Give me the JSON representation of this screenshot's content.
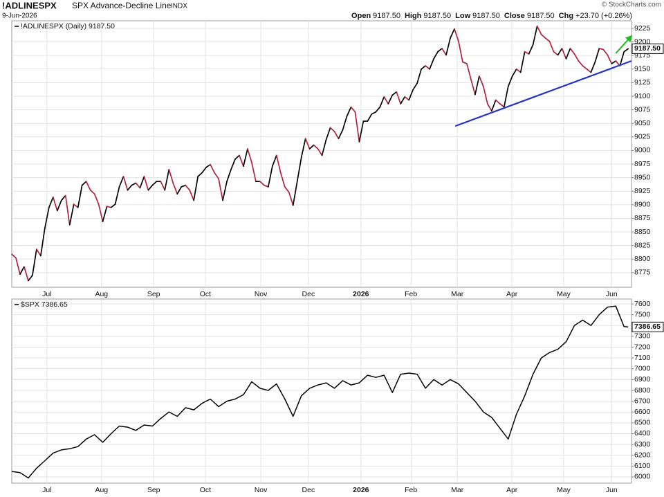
{
  "header": {
    "symbol": "!ADLINESPX",
    "name": "SPX Advance-Decline Line",
    "exchange": "INDX",
    "date": "9-Jun-2026",
    "credit": "© StockCharts.com",
    "quote": [
      {
        "label": "Open",
        "value": "9187.50"
      },
      {
        "label": "High",
        "value": "9187.50"
      },
      {
        "label": "Low",
        "value": "9187.50"
      },
      {
        "label": "Close",
        "value": "9187.50"
      },
      {
        "label": "Chg",
        "value": "+23.70 (+0.26%)"
      }
    ]
  },
  "chart_data": [
    {
      "type": "line",
      "legend": "!ADLINESPX (Daily) 9187.50",
      "last_label": "9187.50",
      "up_color": "#000000",
      "down_color": "#b5213d",
      "grid": true,
      "x": [
        0,
        1,
        2,
        3,
        4,
        5,
        6,
        7,
        8,
        9,
        10,
        11,
        12,
        13,
        14,
        15,
        16,
        17,
        18,
        19,
        20,
        21,
        22,
        23,
        24,
        25,
        26,
        27,
        28,
        29,
        30,
        31,
        32,
        33,
        34,
        35,
        36,
        37,
        38,
        39,
        40,
        41,
        42,
        43,
        44,
        45,
        46,
        47,
        48,
        49,
        50,
        51,
        52,
        53,
        54,
        55,
        56,
        57,
        58,
        59,
        60,
        61,
        62,
        63,
        64,
        65,
        66,
        67,
        68,
        69,
        70,
        71,
        72,
        73,
        74,
        75,
        76,
        77,
        78,
        79,
        80,
        81,
        82,
        83,
        84,
        85,
        86,
        87,
        88,
        89,
        90,
        91,
        92,
        93,
        94,
        95,
        96,
        97,
        98,
        99,
        100,
        101,
        102,
        103,
        104,
        105,
        106,
        107,
        108,
        109,
        110,
        111,
        112,
        113,
        114,
        115,
        116,
        117,
        118,
        119,
        120,
        121,
        122,
        123,
        124,
        125,
        126,
        127,
        128,
        129,
        130,
        131,
        132,
        133,
        134,
        135,
        136,
        137,
        138,
        139,
        140,
        141,
        142,
        143,
        144,
        145,
        146,
        147,
        148,
        149
      ],
      "values": [
        8809,
        8802,
        8772,
        8786,
        8760,
        8770,
        8818,
        8806,
        8857,
        8895,
        8914,
        8889,
        8908,
        8917,
        8863,
        8901,
        8895,
        8936,
        8943,
        8927,
        8920,
        8901,
        8869,
        8897,
        8895,
        8901,
        8933,
        8952,
        8927,
        8936,
        8940,
        8931,
        8952,
        8927,
        8936,
        8943,
        8943,
        8927,
        8965,
        8940,
        8920,
        8933,
        8936,
        8927,
        8908,
        8952,
        8959,
        8969,
        8974,
        8959,
        8948,
        8908,
        8943,
        8965,
        8984,
        8991,
        8971,
        9003,
        8978,
        8943,
        8943,
        8936,
        8933,
        8971,
        8991,
        8959,
        8933,
        8923,
        8899,
        8943,
        8987,
        9022,
        9003,
        9010,
        9003,
        8991,
        9020,
        9042,
        9035,
        9022,
        9038,
        9063,
        9080,
        9071,
        9016,
        9054,
        9054,
        9067,
        9071,
        9080,
        9099,
        9086,
        9102,
        9108,
        9086,
        9099,
        9093,
        9112,
        9124,
        9150,
        9156,
        9150,
        9169,
        9182,
        9188,
        9176,
        9207,
        9224,
        9201,
        9163,
        9160,
        9131,
        9103,
        9137,
        9118,
        9086,
        9073,
        9093,
        9086,
        9080,
        9118,
        9137,
        9150,
        9144,
        9182,
        9178,
        9195,
        9229,
        9214,
        9207,
        9201,
        9182,
        9176,
        9188,
        9169,
        9188,
        9178,
        9165,
        9156,
        9150,
        9144,
        9163,
        9188,
        9186,
        9176,
        9160,
        9165,
        9156,
        9182,
        9187.5
      ],
      "xlim": [
        0,
        149.8
      ],
      "xticks": [
        {
          "value": 8.5,
          "label": "Jul"
        },
        {
          "value": 21.7,
          "label": "Aug"
        },
        {
          "value": 34.3,
          "label": "Sep"
        },
        {
          "value": 46.8,
          "label": "Oct"
        },
        {
          "value": 60.2,
          "label": "Nov"
        },
        {
          "value": 71.7,
          "label": "Dec"
        },
        {
          "value": 84.4,
          "label": "2026"
        },
        {
          "value": 96.5,
          "label": "Feb"
        },
        {
          "value": 107.7,
          "label": "Mar"
        },
        {
          "value": 120.9,
          "label": "Apr"
        },
        {
          "value": 133.4,
          "label": "May"
        },
        {
          "value": 145.0,
          "label": "Jun"
        }
      ],
      "ylim": [
        8748,
        9239
      ],
      "yticks": [
        8775,
        8800,
        8825,
        8850,
        8875,
        8900,
        8925,
        8950,
        8975,
        9000,
        9025,
        9050,
        9075,
        9100,
        9125,
        9150,
        9175,
        9200,
        9225
      ],
      "trendline": {
        "x": [
          107.2,
          149.8
        ],
        "y": [
          9045,
          9165
        ],
        "color": "#2233cc"
      },
      "arrow": {
        "x": [
          146,
          149.8
        ],
        "y": [
          9179,
          9211
        ],
        "color": "#22bb22"
      }
    },
    {
      "type": "line",
      "legend": "$SPX 7386.65",
      "last_label": "7386.65",
      "color": "#000000",
      "grid": true,
      "x": [
        0,
        2,
        4,
        6,
        8,
        10,
        12,
        14,
        16,
        18,
        20,
        22,
        24,
        26,
        28,
        30,
        32,
        34,
        36,
        38,
        40,
        42,
        44,
        46,
        48,
        50,
        52,
        54,
        56,
        58,
        60,
        62,
        64,
        66,
        68,
        70,
        72,
        74,
        76,
        78,
        80,
        82,
        84,
        86,
        88,
        90,
        92,
        94,
        96,
        98,
        100,
        102,
        104,
        106,
        108,
        110,
        112,
        114,
        116,
        118,
        120,
        122,
        124,
        126,
        128,
        130,
        132,
        134,
        136,
        138,
        140,
        142,
        144,
        146,
        148,
        149
      ],
      "values": [
        6050,
        6040,
        5990,
        6080,
        6150,
        6220,
        6250,
        6260,
        6280,
        6350,
        6390,
        6320,
        6400,
        6470,
        6460,
        6430,
        6480,
        6470,
        6540,
        6600,
        6560,
        6640,
        6620,
        6680,
        6720,
        6650,
        6700,
        6720,
        6760,
        6880,
        6820,
        6800,
        6860,
        6720,
        6560,
        6750,
        6820,
        6850,
        6870,
        6820,
        6890,
        6850,
        6870,
        6940,
        6920,
        6940,
        6780,
        6950,
        6960,
        6950,
        6820,
        6900,
        6850,
        6900,
        6860,
        6780,
        6700,
        6600,
        6550,
        6450,
        6350,
        6580,
        6750,
        6950,
        7100,
        7150,
        7180,
        7250,
        7400,
        7450,
        7400,
        7500,
        7570,
        7580,
        7390,
        7386.65
      ],
      "xlim": [
        0,
        149.8
      ],
      "xticks": [
        {
          "value": 8.5,
          "label": "Jul"
        },
        {
          "value": 21.7,
          "label": "Aug"
        },
        {
          "value": 34.3,
          "label": "Sep"
        },
        {
          "value": 46.8,
          "label": "Oct"
        },
        {
          "value": 60.2,
          "label": "Nov"
        },
        {
          "value": 71.7,
          "label": "Dec"
        },
        {
          "value": 84.4,
          "label": "2026"
        },
        {
          "value": 96.5,
          "label": "Feb"
        },
        {
          "value": 107.7,
          "label": "Mar"
        },
        {
          "value": 120.9,
          "label": "Apr"
        },
        {
          "value": 133.4,
          "label": "May"
        },
        {
          "value": 145.0,
          "label": "Jun"
        }
      ],
      "ylim": [
        5942,
        7645
      ],
      "yticks": [
        6000,
        6100,
        6200,
        6300,
        6400,
        6500,
        6600,
        6700,
        6800,
        6900,
        7000,
        7100,
        7200,
        7300,
        7400,
        7500,
        7600
      ]
    }
  ]
}
